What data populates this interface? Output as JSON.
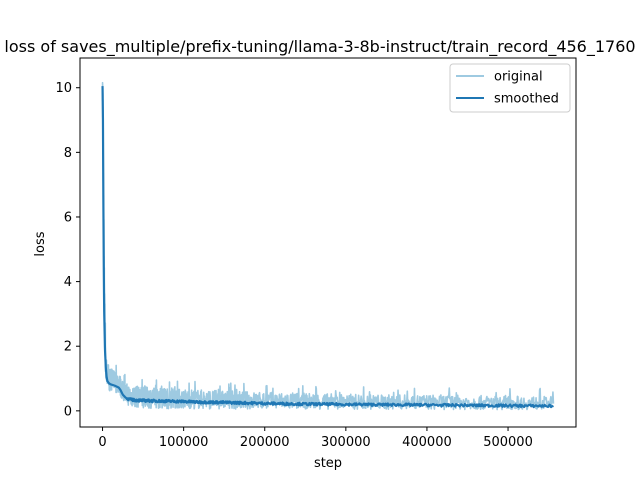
{
  "chart_data": {
    "type": "line",
    "title": "loss of saves_multiple/prefix-tuning/llama-3-8b-instruct/train_record_456_1760",
    "xlabel": "step",
    "ylabel": "loss",
    "xlim": [
      -27800,
      583800
    ],
    "ylim": [
      -0.5,
      10.92
    ],
    "x_ticks": [
      0,
      100000,
      200000,
      300000,
      400000,
      500000
    ],
    "y_ticks": [
      0,
      2,
      4,
      6,
      8,
      10
    ],
    "grid": false,
    "legend_position": "upper right",
    "series": [
      {
        "name": "original",
        "color": "#9ecae1",
        "x": [
          0,
          500,
          1000,
          2000,
          3000,
          4000,
          5000,
          7000,
          10000,
          15000,
          20000,
          25000,
          30000,
          35000,
          40000,
          50000,
          60000,
          80000,
          100000,
          120000,
          150000,
          200000,
          250000,
          300000,
          350000,
          400000,
          450000,
          500000,
          556000
        ],
        "values": [
          10.4,
          9.3,
          7.0,
          4.0,
          2.2,
          1.4,
          1.1,
          1.0,
          0.95,
          0.92,
          0.85,
          0.6,
          0.5,
          0.47,
          0.45,
          0.44,
          0.43,
          0.42,
          0.4,
          0.38,
          0.36,
          0.34,
          0.32,
          0.31,
          0.3,
          0.29,
          0.28,
          0.27,
          0.26
        ],
        "band_low": [
          9.6,
          8.2,
          5.8,
          3.0,
          1.5,
          1.0,
          0.75,
          0.65,
          0.6,
          0.58,
          0.55,
          0.3,
          0.18,
          0.13,
          0.11,
          0.09,
          0.08,
          0.07,
          0.07,
          0.06,
          0.06,
          0.05,
          0.05,
          0.05,
          0.04,
          0.04,
          0.04,
          0.04,
          0.04
        ],
        "band_high": [
          10.4,
          9.8,
          7.8,
          4.8,
          2.9,
          1.9,
          1.5,
          1.35,
          1.3,
          1.25,
          1.2,
          0.9,
          0.85,
          0.8,
          0.78,
          0.75,
          0.72,
          0.7,
          0.68,
          0.66,
          0.62,
          0.58,
          0.55,
          0.52,
          0.5,
          0.5,
          0.48,
          0.46,
          0.44
        ]
      },
      {
        "name": "smoothed",
        "color": "#1f77b4",
        "x": [
          0,
          500,
          1000,
          1500,
          2000,
          3000,
          4000,
          5000,
          6000,
          8000,
          10000,
          15000,
          20000,
          22000,
          25000,
          28000,
          30000,
          35000,
          40000,
          50000,
          60000,
          80000,
          100000,
          120000,
          150000,
          200000,
          250000,
          300000,
          350000,
          400000,
          450000,
          500000,
          556000
        ],
        "values": [
          10.05,
          9.0,
          6.5,
          4.5,
          3.1,
          1.9,
          1.35,
          1.05,
          0.92,
          0.85,
          0.82,
          0.78,
          0.72,
          0.65,
          0.5,
          0.42,
          0.38,
          0.35,
          0.33,
          0.32,
          0.31,
          0.3,
          0.29,
          0.27,
          0.26,
          0.23,
          0.21,
          0.2,
          0.19,
          0.18,
          0.17,
          0.16,
          0.15
        ]
      }
    ]
  }
}
